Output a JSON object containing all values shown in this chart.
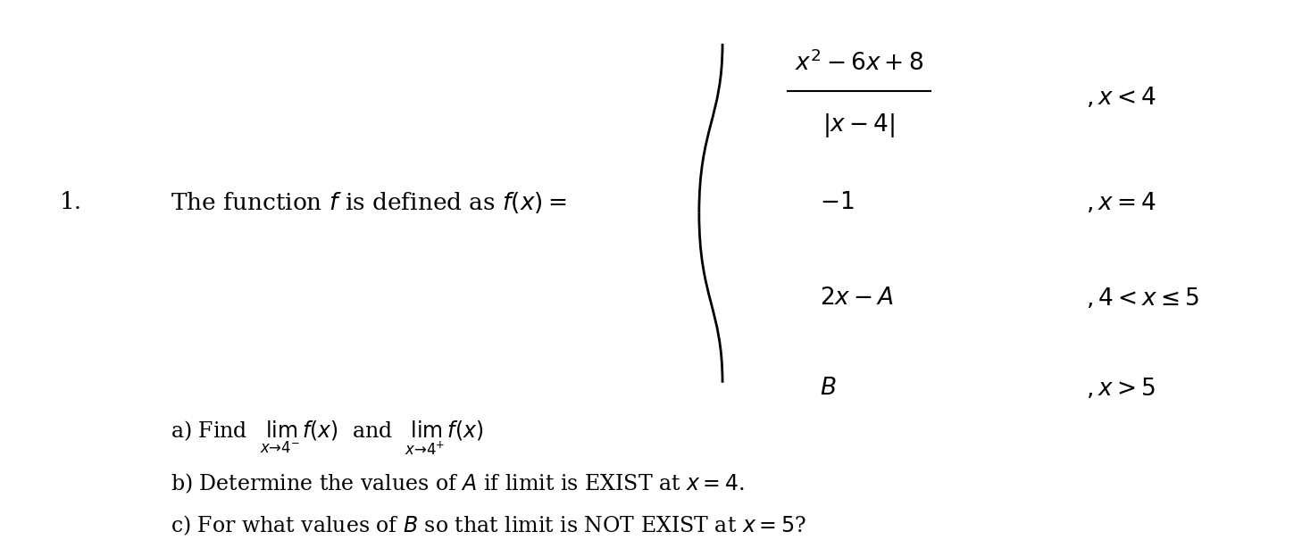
{
  "bg_color": "#ffffff",
  "figsize": [
    14.58,
    6.05
  ],
  "dpi": 100,
  "number_text": "1.",
  "intro_text": "The function $f$ is defined as $f(x) =$",
  "piece1_expr": "$\\dfrac{x^2 - 6x + 8}{|x-4|}$",
  "piece1_cond": "$,x < 4$",
  "piece2_expr": "$-1$",
  "piece2_cond": "$,x = 4$",
  "piece3_expr": "$2x - A$",
  "piece3_cond": "$,4 < x \\leq 5$",
  "piece4_expr": "$B$",
  "piece4_cond": "$,x > 5$",
  "part_a": "a) Find  $\\lim_{x \\to 4^-} f(x)$  and  $\\lim_{x \\to 4^+} f(x)$",
  "part_b": "b) Determine the values of $A$ if limit is EXIST at $x = 4$.",
  "part_c": "c) For what values of $B$ so that limit is NOT EXIST at $x = 5$?"
}
